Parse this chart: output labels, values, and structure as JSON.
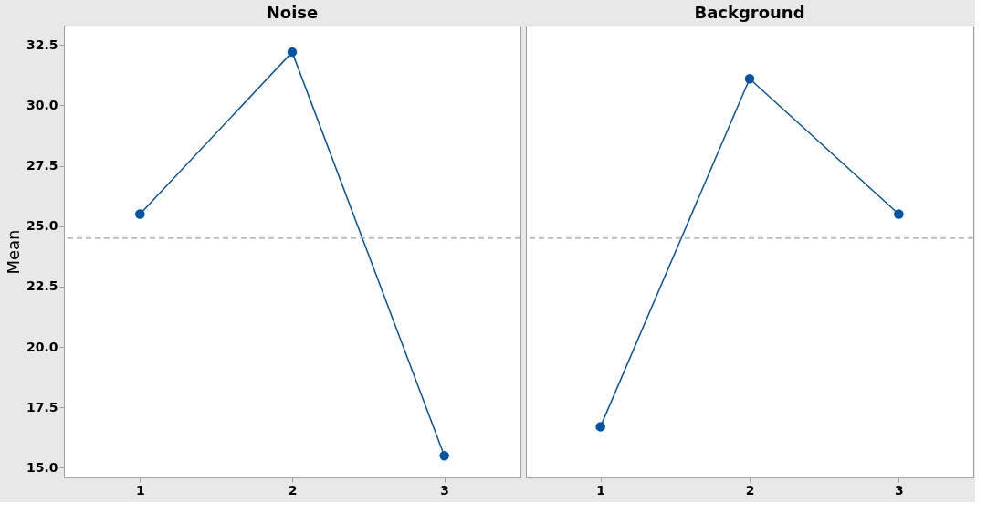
{
  "chart_data": [
    {
      "type": "line",
      "title": "Noise",
      "ylabel": "Mean",
      "categories": [
        "1",
        "2",
        "3"
      ],
      "series": [
        {
          "color": "#0054a6",
          "values": [
            25.5,
            32.2,
            15.5
          ]
        }
      ],
      "ylim": [
        14.6,
        33.3
      ],
      "yticks": [
        {
          "value": 15,
          "label": "15.0"
        },
        17.5,
        {
          "value": 20,
          "label": "20.0"
        },
        22.5,
        {
          "value": 25,
          "label": "25.0"
        },
        27.5,
        {
          "value": 30,
          "label": "30.0"
        },
        32.5
      ],
      "ref_lines": [
        {
          "axis": "y",
          "value": 24.5,
          "color": "#a0a0a0",
          "line_style": "dashed"
        }
      ],
      "marker": "circle",
      "line_style": "solid",
      "grid": false
    },
    {
      "type": "line",
      "title": "Background",
      "categories": [
        "1",
        "2",
        "3"
      ],
      "series": [
        {
          "color": "#0054a6",
          "values": [
            16.7,
            31.1,
            25.5
          ]
        }
      ],
      "ylim": [
        14.6,
        33.3
      ],
      "yticks": [
        15,
        17.5,
        20,
        22.5,
        25,
        27.5,
        30,
        32.5
      ],
      "ref_lines": [
        {
          "axis": "y",
          "value": 24.5,
          "color": "#a0a0a0",
          "line_style": "dashed"
        }
      ],
      "marker": "circle",
      "line_style": "solid",
      "grid": false,
      "tick_labels": "x"
    }
  ]
}
